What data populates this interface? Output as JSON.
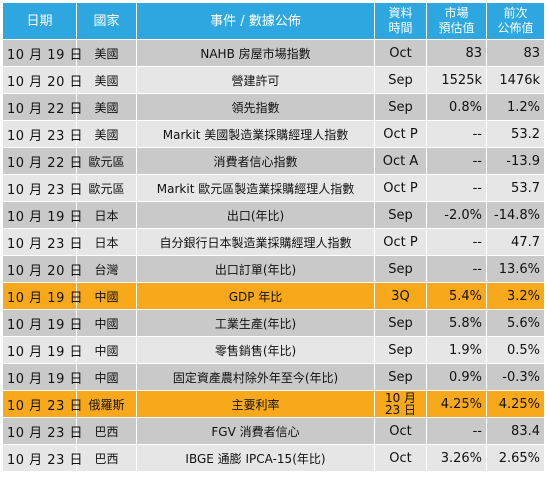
{
  "headers": {
    "date": "日期",
    "country": "國家",
    "event": "事件 / 數據公佈",
    "period_line1": "資料",
    "period_line2": "時間",
    "forecast_line1": "市場",
    "forecast_line2": "預估值",
    "previous_line1": "前次",
    "previous_line2": "公佈值"
  },
  "rows": [
    {
      "date": "10 月 19 日",
      "country": "美國",
      "event": "NAHB 房屋市場指數",
      "period": "Oct",
      "forecast": "83",
      "previous": "83",
      "highlight": false
    },
    {
      "date": "10 月 20 日",
      "country": "美國",
      "event": "營建許可",
      "period": "Sep",
      "forecast": "1525k",
      "previous": "1476k",
      "highlight": false
    },
    {
      "date": "10 月 22 日",
      "country": "美國",
      "event": "領先指數",
      "period": "Sep",
      "forecast": "0.8%",
      "previous": "1.2%",
      "highlight": false
    },
    {
      "date": "10 月 23 日",
      "country": "美國",
      "event": "Markit 美國製造業採購經理人指數",
      "period": "Oct P",
      "forecast": "--",
      "previous": "53.2",
      "highlight": false
    },
    {
      "date": "10 月 22 日",
      "country": "歐元區",
      "event": "消費者信心指數",
      "period": "Oct A",
      "forecast": "--",
      "previous": "-13.9",
      "highlight": false
    },
    {
      "date": "10 月 23 日",
      "country": "歐元區",
      "event": "Markit 歐元區製造業採購經理人指數",
      "period": "Oct P",
      "forecast": "--",
      "previous": "53.7",
      "highlight": false
    },
    {
      "date": "10 月 19 日",
      "country": "日本",
      "event": "出口(年比)",
      "period": "Sep",
      "forecast": "-2.0%",
      "previous": "-14.8%",
      "highlight": false
    },
    {
      "date": "10 月 23 日",
      "country": "日本",
      "event": "自分銀行日本製造業採購經理人指數",
      "period": "Oct P",
      "forecast": "--",
      "previous": "47.7",
      "highlight": false
    },
    {
      "date": "10 月 20 日",
      "country": "台灣",
      "event": "出口訂單(年比)",
      "period": "Sep",
      "forecast": "--",
      "previous": "13.6%",
      "highlight": false
    },
    {
      "date": "10 月 19 日",
      "country": "中國",
      "event": "GDP 年比",
      "period": "3Q",
      "forecast": "5.4%",
      "previous": "3.2%",
      "highlight": true
    },
    {
      "date": "10 月 19 日",
      "country": "中國",
      "event": "工業生產(年比)",
      "period": "Sep",
      "forecast": "5.8%",
      "previous": "5.6%",
      "highlight": false
    },
    {
      "date": "10 月 19 日",
      "country": "中國",
      "event": "零售銷售(年比)",
      "period": "Sep",
      "forecast": "1.9%",
      "previous": "0.5%",
      "highlight": false
    },
    {
      "date": "10 月 19 日",
      "country": "中國",
      "event": "固定資產農村除外年至今(年比)",
      "period": "Sep",
      "forecast": "0.9%",
      "previous": "-0.3%",
      "highlight": false
    },
    {
      "date": "10 月 23 日",
      "country": "俄羅斯",
      "event": "主要利率",
      "period": "10 月 23 日",
      "forecast": "4.25%",
      "previous": "4.25%",
      "highlight": true
    },
    {
      "date": "10 月 23 日",
      "country": "巴西",
      "event": "FGV 消費者信心",
      "period": "Oct",
      "forecast": "--",
      "previous": "83.4",
      "highlight": false
    },
    {
      "date": "10 月 23 日",
      "country": "巴西",
      "event": "IBGE 通膨 IPCA-15(年比)",
      "period": "Oct",
      "forecast": "3.26%",
      "previous": "2.65%",
      "highlight": false
    }
  ],
  "colors": {
    "header_bg": "#2ea7e0",
    "row_odd": "#c9c9c9",
    "row_even": "#e6e6e6",
    "highlight": "#f7a81b"
  }
}
